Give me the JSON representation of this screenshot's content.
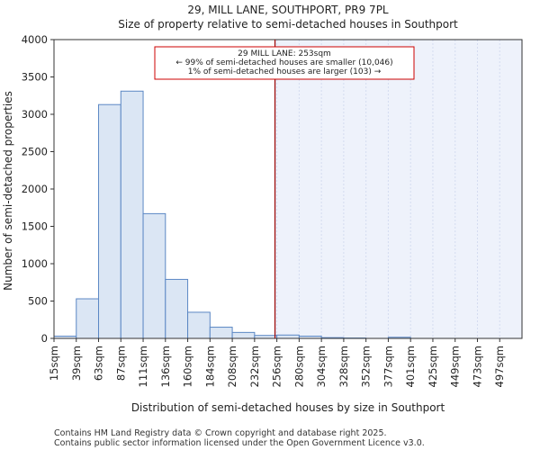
{
  "chart_data": {
    "type": "bar",
    "title": "29, MILL LANE, SOUTHPORT, PR9 7PL",
    "subtitle": "Size of property relative to semi-detached houses in Southport",
    "xlabel": "Distribution of semi-detached houses by size in Southport",
    "ylabel": "Number of semi-detached properties",
    "categories": [
      "15sqm",
      "39sqm",
      "63sqm",
      "87sqm",
      "111sqm",
      "136sqm",
      "160sqm",
      "184sqm",
      "208sqm",
      "232sqm",
      "256sqm",
      "280sqm",
      "304sqm",
      "328sqm",
      "352sqm",
      "377sqm",
      "401sqm",
      "425sqm",
      "449sqm",
      "473sqm",
      "497sqm"
    ],
    "values": [
      30,
      530,
      3130,
      3310,
      1670,
      790,
      350,
      150,
      80,
      40,
      45,
      30,
      10,
      5,
      0,
      15,
      0,
      0,
      0,
      0,
      0
    ],
    "ylim": [
      0,
      4000
    ],
    "yticks": [
      0,
      500,
      1000,
      1500,
      2000,
      2500,
      3000,
      3500,
      4000
    ],
    "marker": {
      "value_sqm": 253
    },
    "annotation": {
      "line1": "29 MILL LANE: 253sqm",
      "line2": "← 99% of semi-detached houses are smaller (10,046)",
      "line3": "1% of semi-detached houses are larger (103) →"
    },
    "colors": {
      "bar_fill": "#dbe6f4",
      "bar_stroke": "#5b87c4",
      "marker_line": "#990000",
      "annotation_border": "#cc0000",
      "highlight_fill": "#eef2fb"
    }
  },
  "footer": {
    "line1": "Contains HM Land Registry data © Crown copyright and database right 2025.",
    "line2": "Contains public sector information licensed under the Open Government Licence v3.0."
  }
}
